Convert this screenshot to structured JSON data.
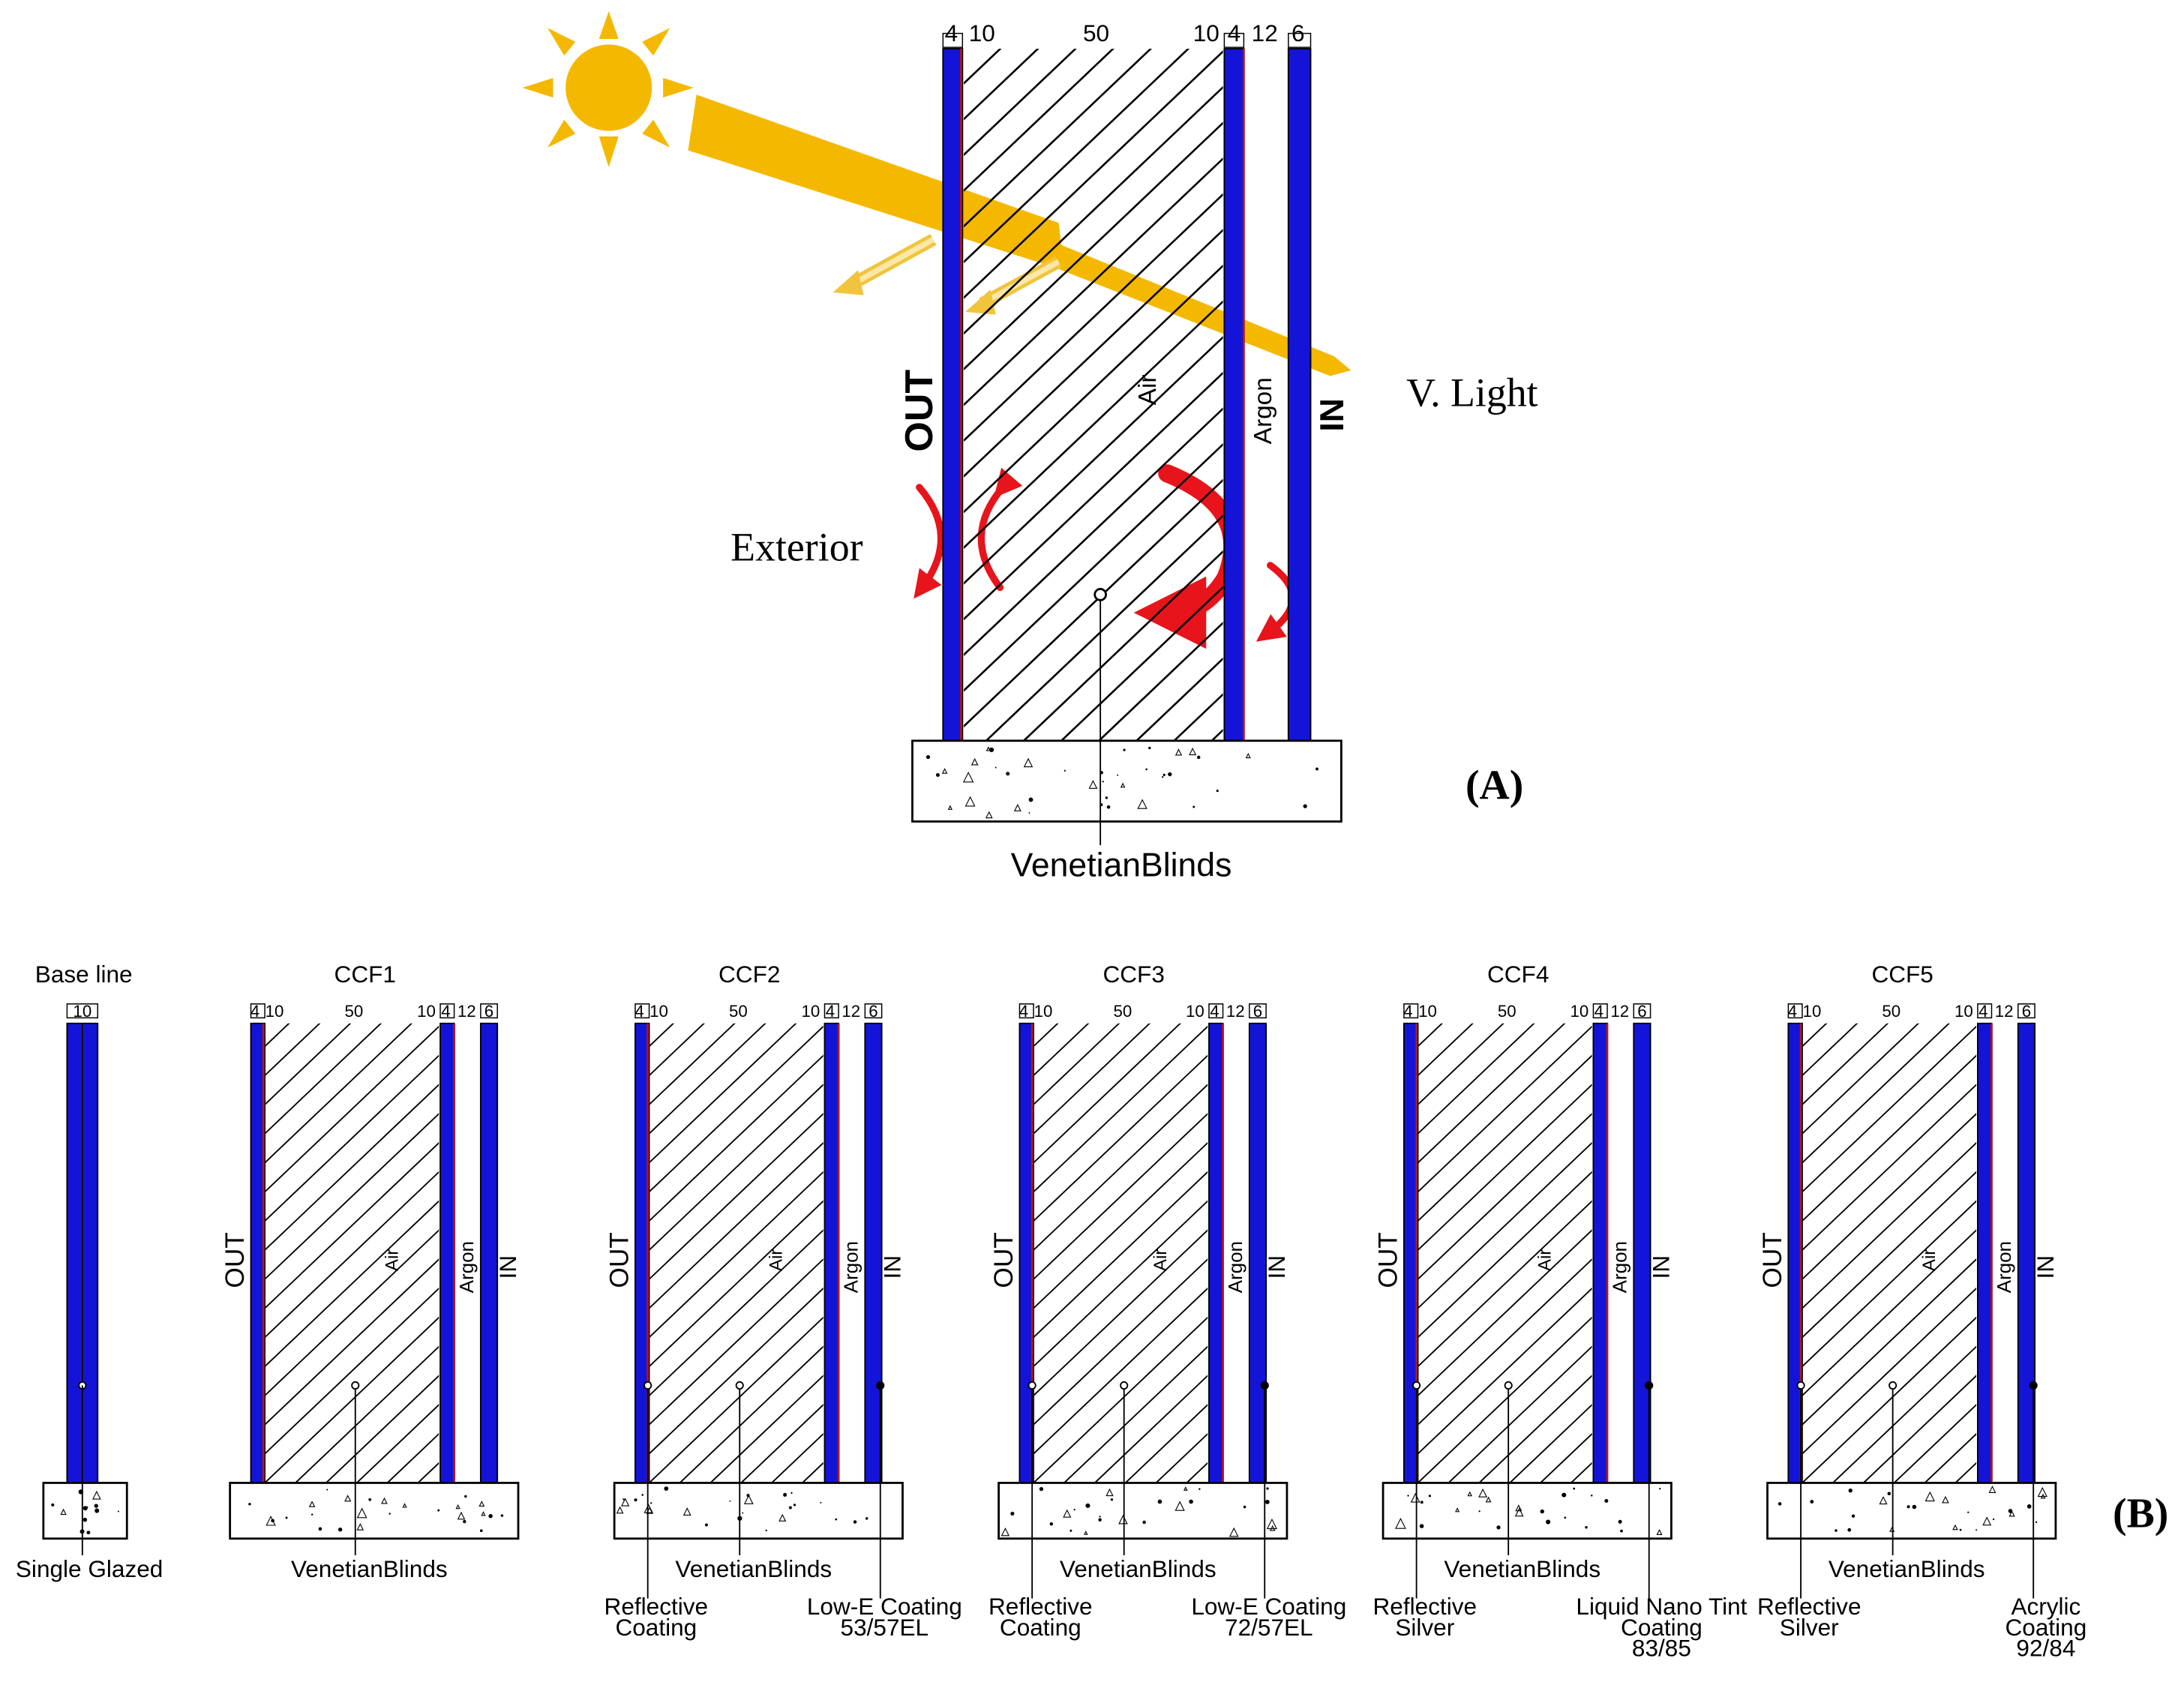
{
  "panel_a": {
    "label": "(A)",
    "dims": [
      4,
      10,
      50,
      10,
      4,
      12,
      6
    ],
    "out": "OUT",
    "air": "Air",
    "argon": "Argon",
    "in": "IN",
    "light": "V. Light",
    "exterior": "Exterior",
    "blinds": "VenetianBlinds"
  },
  "panel_b": {
    "label": "(B)",
    "baseline": {
      "title": "Base line",
      "dim": 10,
      "note": "Single Glazed"
    },
    "configs": [
      {
        "title": "CCF1",
        "dims": [
          4,
          10,
          50,
          10,
          4,
          12,
          6
        ],
        "out": "OUT",
        "air": "Air",
        "argon": "Argon",
        "in": "IN",
        "blinds": "VenetianBlinds"
      },
      {
        "title": "CCF2",
        "dims": [
          4,
          10,
          50,
          10,
          4,
          12,
          6
        ],
        "out": "OUT",
        "air": "Air",
        "argon": "Argon",
        "in": "IN",
        "blinds": "VenetianBlinds",
        "left_note": [
          "Reflective",
          "Coating"
        ],
        "right_note": [
          "Low-E Coating",
          "53/57EL"
        ]
      },
      {
        "title": "CCF3",
        "dims": [
          4,
          10,
          50,
          10,
          4,
          12,
          6
        ],
        "out": "OUT",
        "air": "Air",
        "argon": "Argon",
        "in": "IN",
        "blinds": "VenetianBlinds",
        "left_note": [
          "Reflective",
          "Coating"
        ],
        "right_note": [
          "Low-E Coating",
          "72/57EL"
        ]
      },
      {
        "title": "CCF4",
        "dims": [
          4,
          10,
          50,
          10,
          4,
          12,
          6
        ],
        "out": "OUT",
        "air": "Air",
        "argon": "Argon",
        "in": "IN",
        "blinds": "VenetianBlinds",
        "left_note": [
          "Reflective",
          "Silver"
        ],
        "right_note": [
          "Liquid Nano Tint",
          "Coating",
          "83/85"
        ]
      },
      {
        "title": "CCF5",
        "dims": [
          4,
          10,
          50,
          10,
          4,
          12,
          6
        ],
        "out": "OUT",
        "air": "Air",
        "argon": "Argon",
        "in": "IN",
        "blinds": "VenetianBlinds",
        "left_note": [
          "Reflective",
          "Silver"
        ],
        "right_note": [
          "Acrylic",
          "Coating",
          "92/84"
        ]
      }
    ]
  }
}
